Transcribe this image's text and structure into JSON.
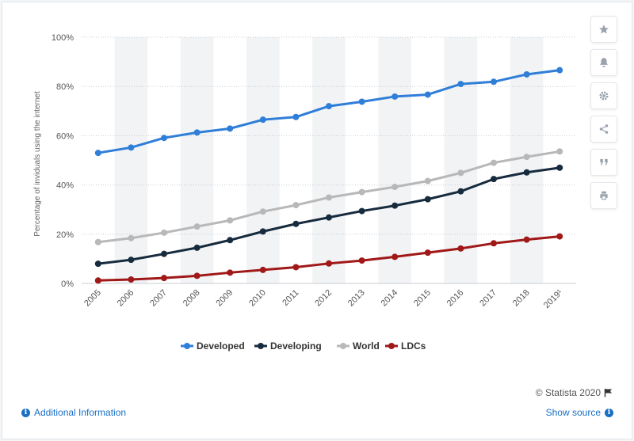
{
  "chart_data": {
    "type": "line",
    "categories": [
      "2005",
      "2006",
      "2007",
      "2008",
      "2009",
      "2010",
      "2011",
      "2012",
      "2013",
      "2014",
      "2015",
      "2016",
      "2017",
      "2018",
      "2019¹"
    ],
    "ylabel": "Percentage of inviduals using the internet",
    "ylim": [
      0,
      100
    ],
    "yticks": [
      0,
      20,
      40,
      60,
      80,
      100
    ],
    "ytick_labels": [
      "0%",
      "20%",
      "40%",
      "60%",
      "80%",
      "100%"
    ],
    "grid": true,
    "legend_position": "bottom",
    "series": [
      {
        "name": "Developed",
        "color": "#2f7ed8",
        "values": [
          53,
          55.2,
          59.1,
          61.3,
          62.9,
          66.5,
          67.6,
          72,
          73.8,
          75.9,
          76.7,
          81,
          81.9,
          84.9,
          86.6
        ]
      },
      {
        "name": "Developing",
        "color": "#172b3f",
        "values": [
          8,
          9.6,
          12,
          14.5,
          17.6,
          21.1,
          24.2,
          26.8,
          29.4,
          31.6,
          34.2,
          37.4,
          42.4,
          45.1,
          47
        ]
      },
      {
        "name": "World",
        "color": "#b8b8b8",
        "values": [
          16.8,
          18.4,
          20.6,
          23.1,
          25.6,
          29.2,
          31.8,
          34.9,
          37.1,
          39.2,
          41.6,
          44.9,
          49,
          51.4,
          53.6
        ]
      },
      {
        "name": "LDCs",
        "color": "#a01818",
        "values": [
          1.2,
          1.6,
          2.2,
          3.1,
          4.4,
          5.5,
          6.6,
          8.1,
          9.3,
          10.8,
          12.5,
          14.2,
          16.3,
          17.8,
          19.1
        ]
      }
    ]
  },
  "footer": {
    "credit": "© Statista 2020",
    "additional_info": "Additional Information",
    "show_source": "Show source"
  },
  "sidebar_icons": [
    "star-icon",
    "bell-icon",
    "gear-icon",
    "share-icon",
    "quote-icon",
    "print-icon"
  ]
}
